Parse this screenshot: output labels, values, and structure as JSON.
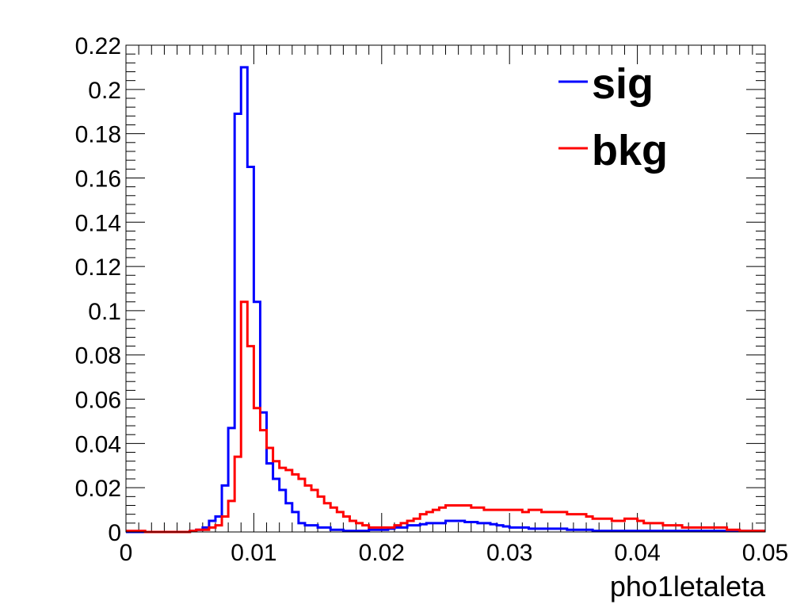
{
  "chart_data": {
    "type": "histogram",
    "title": "",
    "xlabel": "pho1letaleta",
    "ylabel": "",
    "xlim": [
      0,
      0.05
    ],
    "ylim": [
      0,
      0.22
    ],
    "grid": false,
    "legend_position": "top-right",
    "x_tick_labels": [
      "0",
      "0.01",
      "0.02",
      "0.03",
      "0.04",
      "0.05"
    ],
    "y_tick_labels": [
      "0",
      "0.02",
      "0.04",
      "0.06",
      "0.08",
      "0.1",
      "0.12",
      "0.14",
      "0.16",
      "0.18",
      "0.2",
      "0.22"
    ],
    "bin_edges": [
      0.0,
      0.0005,
      0.001,
      0.0015,
      0.002,
      0.0025,
      0.003,
      0.0035,
      0.004,
      0.0045,
      0.005,
      0.0055,
      0.006,
      0.0065,
      0.007,
      0.0075,
      0.008,
      0.0085,
      0.009,
      0.0095,
      0.01,
      0.0105,
      0.011,
      0.0115,
      0.012,
      0.0125,
      0.013,
      0.0135,
      0.014,
      0.0145,
      0.015,
      0.0155,
      0.016,
      0.0165,
      0.017,
      0.0175,
      0.018,
      0.0185,
      0.019,
      0.0195,
      0.02,
      0.0205,
      0.021,
      0.0215,
      0.022,
      0.0225,
      0.023,
      0.0235,
      0.024,
      0.0245,
      0.025,
      0.0255,
      0.026,
      0.0265,
      0.027,
      0.0275,
      0.028,
      0.0285,
      0.029,
      0.0295,
      0.03,
      0.0305,
      0.031,
      0.0315,
      0.032,
      0.0325,
      0.033,
      0.0335,
      0.034,
      0.0345,
      0.035,
      0.0355,
      0.036,
      0.0365,
      0.037,
      0.0375,
      0.038,
      0.0385,
      0.039,
      0.0395,
      0.04,
      0.0405,
      0.041,
      0.0415,
      0.042,
      0.0425,
      0.043,
      0.0435,
      0.044,
      0.0445,
      0.045,
      0.0455,
      0.046,
      0.0465,
      0.047,
      0.0475,
      0.048,
      0.0485,
      0.049,
      0.0495,
      0.05
    ],
    "series": [
      {
        "name": "sig",
        "color": "#0000ff",
        "values": [
          0.0,
          0.0,
          0.0,
          0.0,
          0.0,
          0.0,
          0.0,
          0.0,
          0.0,
          0.0,
          0.0005,
          0.001,
          0.002,
          0.005,
          0.007,
          0.021,
          0.047,
          0.189,
          0.21,
          0.165,
          0.104,
          0.054,
          0.031,
          0.024,
          0.019,
          0.013,
          0.009,
          0.004,
          0.003,
          0.003,
          0.002,
          0.002,
          0.001,
          0.001,
          0.0005,
          0.0005,
          0.0005,
          0.0005,
          0.001,
          0.001,
          0.001,
          0.0015,
          0.002,
          0.002,
          0.003,
          0.003,
          0.0035,
          0.004,
          0.004,
          0.004,
          0.005,
          0.005,
          0.005,
          0.0045,
          0.0045,
          0.004,
          0.004,
          0.0035,
          0.003,
          0.0025,
          0.002,
          0.002,
          0.002,
          0.0015,
          0.0015,
          0.0015,
          0.0015,
          0.0015,
          0.0015,
          0.001,
          0.001,
          0.001,
          0.001,
          0.0005,
          0.0005,
          0.0005,
          0.0005,
          0.0005,
          0.0005,
          0.0005,
          0.0005,
          0.0005,
          0.0005,
          0.0005,
          0.0005,
          0.0005,
          0.0005,
          0.0005,
          0.0005,
          0.0005,
          0.0005,
          0.0005,
          0.0005,
          0.0005,
          0.0005,
          0.0005,
          0.0005,
          0.0005,
          0.0005,
          0.0005
        ]
      },
      {
        "name": "bkg",
        "color": "#ff0000",
        "values": [
          0.0005,
          0.0005,
          0.0005,
          0.0,
          0.0,
          0.0,
          0.0,
          0.0,
          0.0,
          0.0,
          0.0005,
          0.001,
          0.001,
          0.002,
          0.003,
          0.007,
          0.014,
          0.034,
          0.104,
          0.084,
          0.056,
          0.046,
          0.038,
          0.032,
          0.029,
          0.028,
          0.026,
          0.024,
          0.021,
          0.019,
          0.016,
          0.013,
          0.011,
          0.009,
          0.007,
          0.005,
          0.004,
          0.003,
          0.002,
          0.002,
          0.002,
          0.002,
          0.003,
          0.004,
          0.005,
          0.006,
          0.008,
          0.009,
          0.01,
          0.011,
          0.012,
          0.012,
          0.012,
          0.012,
          0.011,
          0.011,
          0.01,
          0.01,
          0.01,
          0.01,
          0.01,
          0.01,
          0.009,
          0.01,
          0.01,
          0.009,
          0.009,
          0.009,
          0.009,
          0.008,
          0.008,
          0.008,
          0.007,
          0.006,
          0.006,
          0.006,
          0.005,
          0.005,
          0.006,
          0.006,
          0.005,
          0.004,
          0.004,
          0.004,
          0.003,
          0.003,
          0.003,
          0.002,
          0.002,
          0.002,
          0.002,
          0.002,
          0.002,
          0.002,
          0.001,
          0.001,
          0.0005,
          0.0005,
          0.0005,
          0.0005
        ]
      }
    ]
  }
}
